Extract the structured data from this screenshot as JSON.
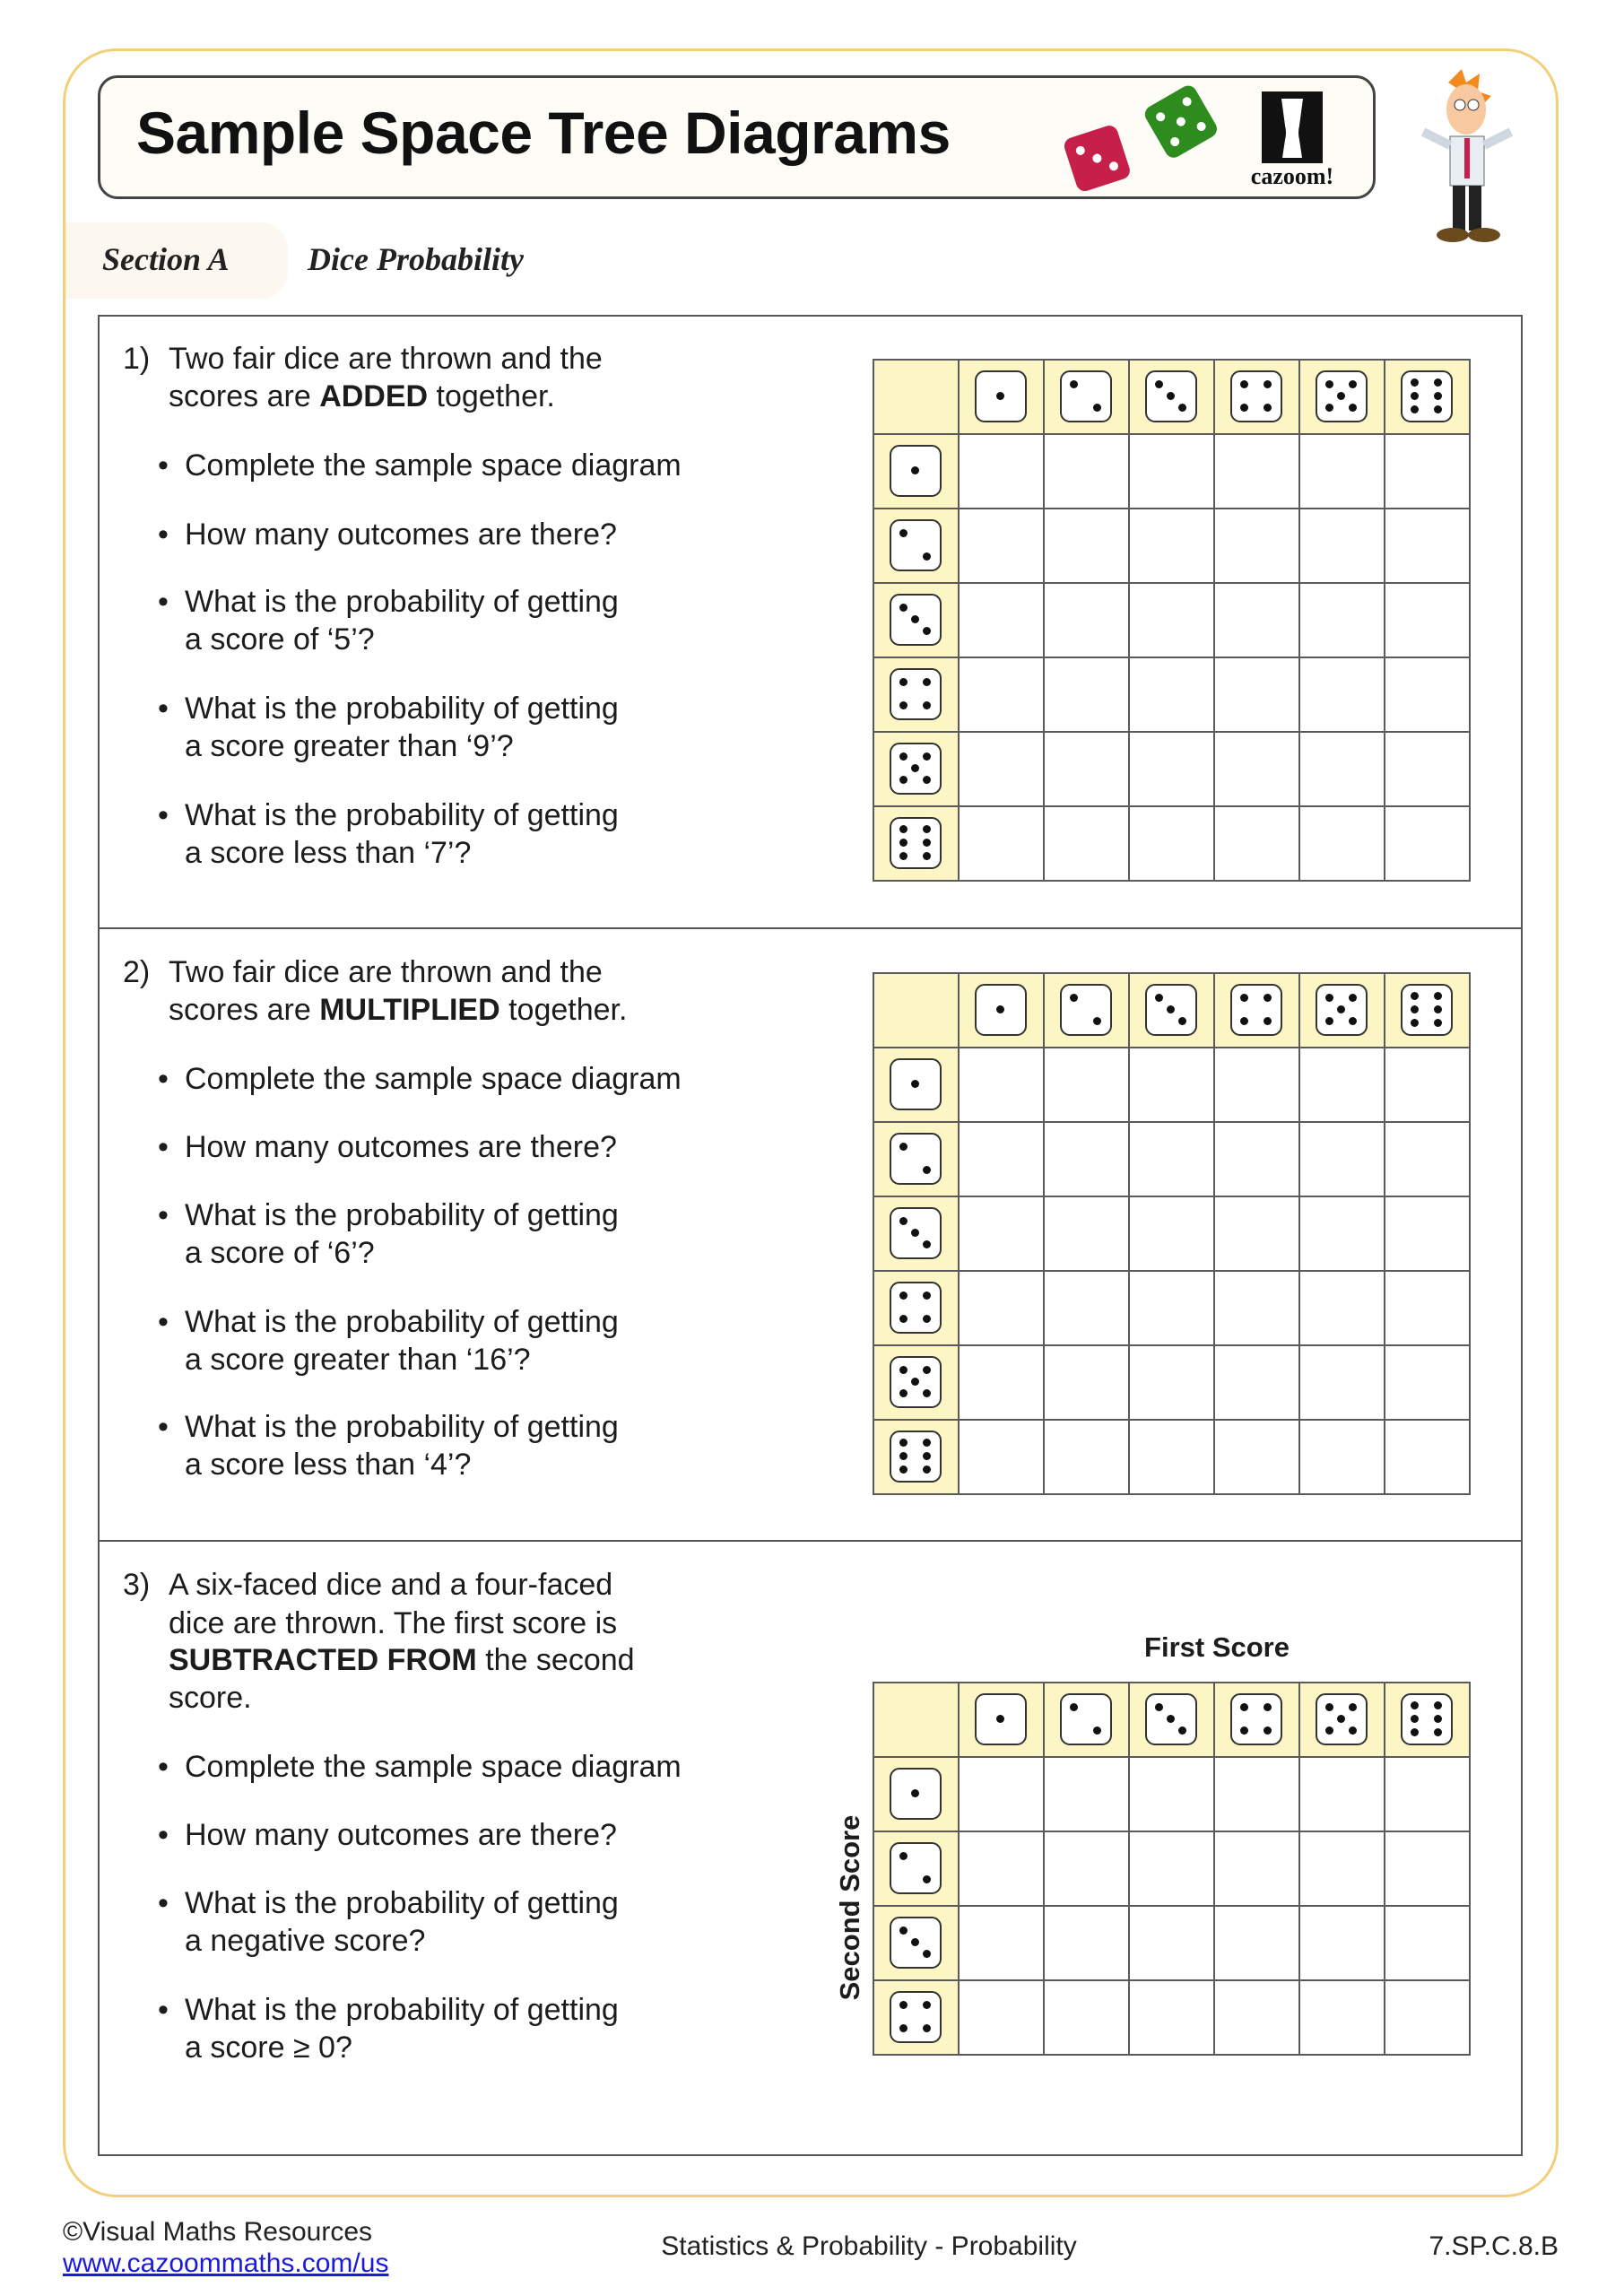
{
  "header": {
    "title": "Sample Space Tree Diagrams",
    "logo_text": "cazoom!",
    "section_label": "Section A",
    "section_title": "Dice Probability"
  },
  "colors": {
    "frame": "#f3cf7c",
    "header_cell": "#fcf5c4",
    "red_die": "#c51f4a",
    "green_die": "#2e8b1e"
  },
  "questions": [
    {
      "number": "1)",
      "header_lines": [
        [
          {
            "text": "Two fair dice are thrown and the"
          }
        ],
        [
          {
            "text": "scores are "
          },
          {
            "text": "ADDED",
            "bold": true
          },
          {
            "text": " together."
          }
        ]
      ],
      "bullets": [
        [
          "Complete the sample space diagram"
        ],
        [
          "How many outcomes are there?"
        ],
        [
          "What is the probability of getting",
          "a score of ‘5’?"
        ],
        [
          "What is the probability of getting",
          "a score greater than ‘9’?"
        ],
        [
          "What is the probability of getting",
          "a score less than ‘7’?"
        ]
      ],
      "grid": {
        "columns": [
          1,
          2,
          3,
          4,
          5,
          6
        ],
        "rows": [
          1,
          2,
          3,
          4,
          5,
          6
        ],
        "column_label": "",
        "row_label": ""
      }
    },
    {
      "number": "2)",
      "header_lines": [
        [
          {
            "text": "Two fair dice are thrown and the"
          }
        ],
        [
          {
            "text": "scores are "
          },
          {
            "text": "MULTIPLIED",
            "bold": true
          },
          {
            "text": " together."
          }
        ]
      ],
      "bullets": [
        [
          "Complete the sample space diagram"
        ],
        [
          "How many outcomes are there?"
        ],
        [
          "What is the probability of getting",
          "a score of ‘6’?"
        ],
        [
          "What is the probability of getting",
          "a score greater than ‘16’?"
        ],
        [
          "What is the probability of getting",
          "a score less than ‘4’?"
        ]
      ],
      "grid": {
        "columns": [
          1,
          2,
          3,
          4,
          5,
          6
        ],
        "rows": [
          1,
          2,
          3,
          4,
          5,
          6
        ],
        "column_label": "",
        "row_label": ""
      }
    },
    {
      "number": "3)",
      "header_lines": [
        [
          {
            "text": "A six-faced dice and a four-faced"
          }
        ],
        [
          {
            "text": "dice are thrown. The first score is"
          }
        ],
        [
          {
            "text": "SUBTRACTED FROM",
            "bold": true
          },
          {
            "text": " the second"
          }
        ],
        [
          {
            "text": "score."
          }
        ]
      ],
      "bullets": [
        [
          "Complete the sample space diagram"
        ],
        [
          "How many outcomes are there?"
        ],
        [
          "What is the probability of getting",
          "a negative score?"
        ],
        [
          "What is the probability of getting",
          "a score ≥ 0?"
        ]
      ],
      "grid": {
        "columns": [
          1,
          2,
          3,
          4,
          5,
          6
        ],
        "rows": [
          1,
          2,
          3,
          4
        ],
        "column_label": "First Score",
        "row_label": "Second Score"
      }
    }
  ],
  "footer": {
    "copyright": "©Visual Maths Resources",
    "url": "www.cazoommaths.com/us",
    "topic": "Statistics & Probability - Probability",
    "standard": "7.SP.C.8.B"
  }
}
